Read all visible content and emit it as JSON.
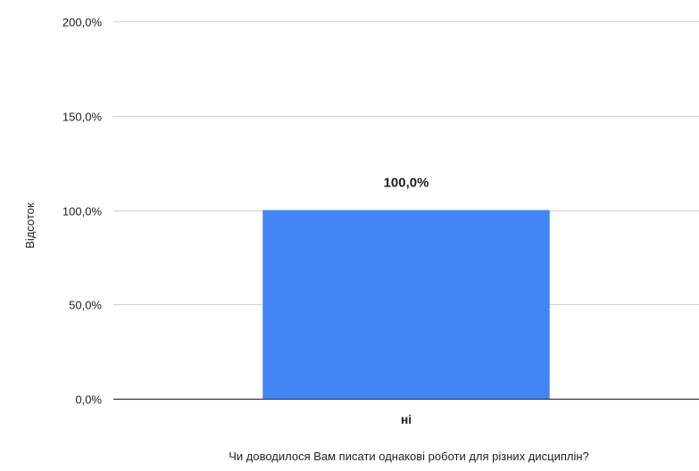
{
  "chart_data": {
    "type": "bar",
    "categories": [
      "ні"
    ],
    "series": [
      {
        "values": [
          100.0
        ],
        "color": "#4285f4"
      }
    ],
    "data_labels": [
      "100,0%"
    ],
    "ylabel": "Відсоток",
    "xlabel": "Чи доводилося Вам писати однакові роботи для різних дисциплін?",
    "ylim": [
      0,
      200
    ],
    "yticks": [
      0,
      50,
      100,
      150,
      200
    ],
    "ytick_labels": [
      "0,0%",
      "50,0%",
      "100,0%",
      "150,0%",
      "200,0%"
    ],
    "grid": true,
    "legend": "none"
  },
  "colors": {
    "gridline": "#d0d0d0",
    "baseline": "#333333",
    "text": "#222222"
  }
}
